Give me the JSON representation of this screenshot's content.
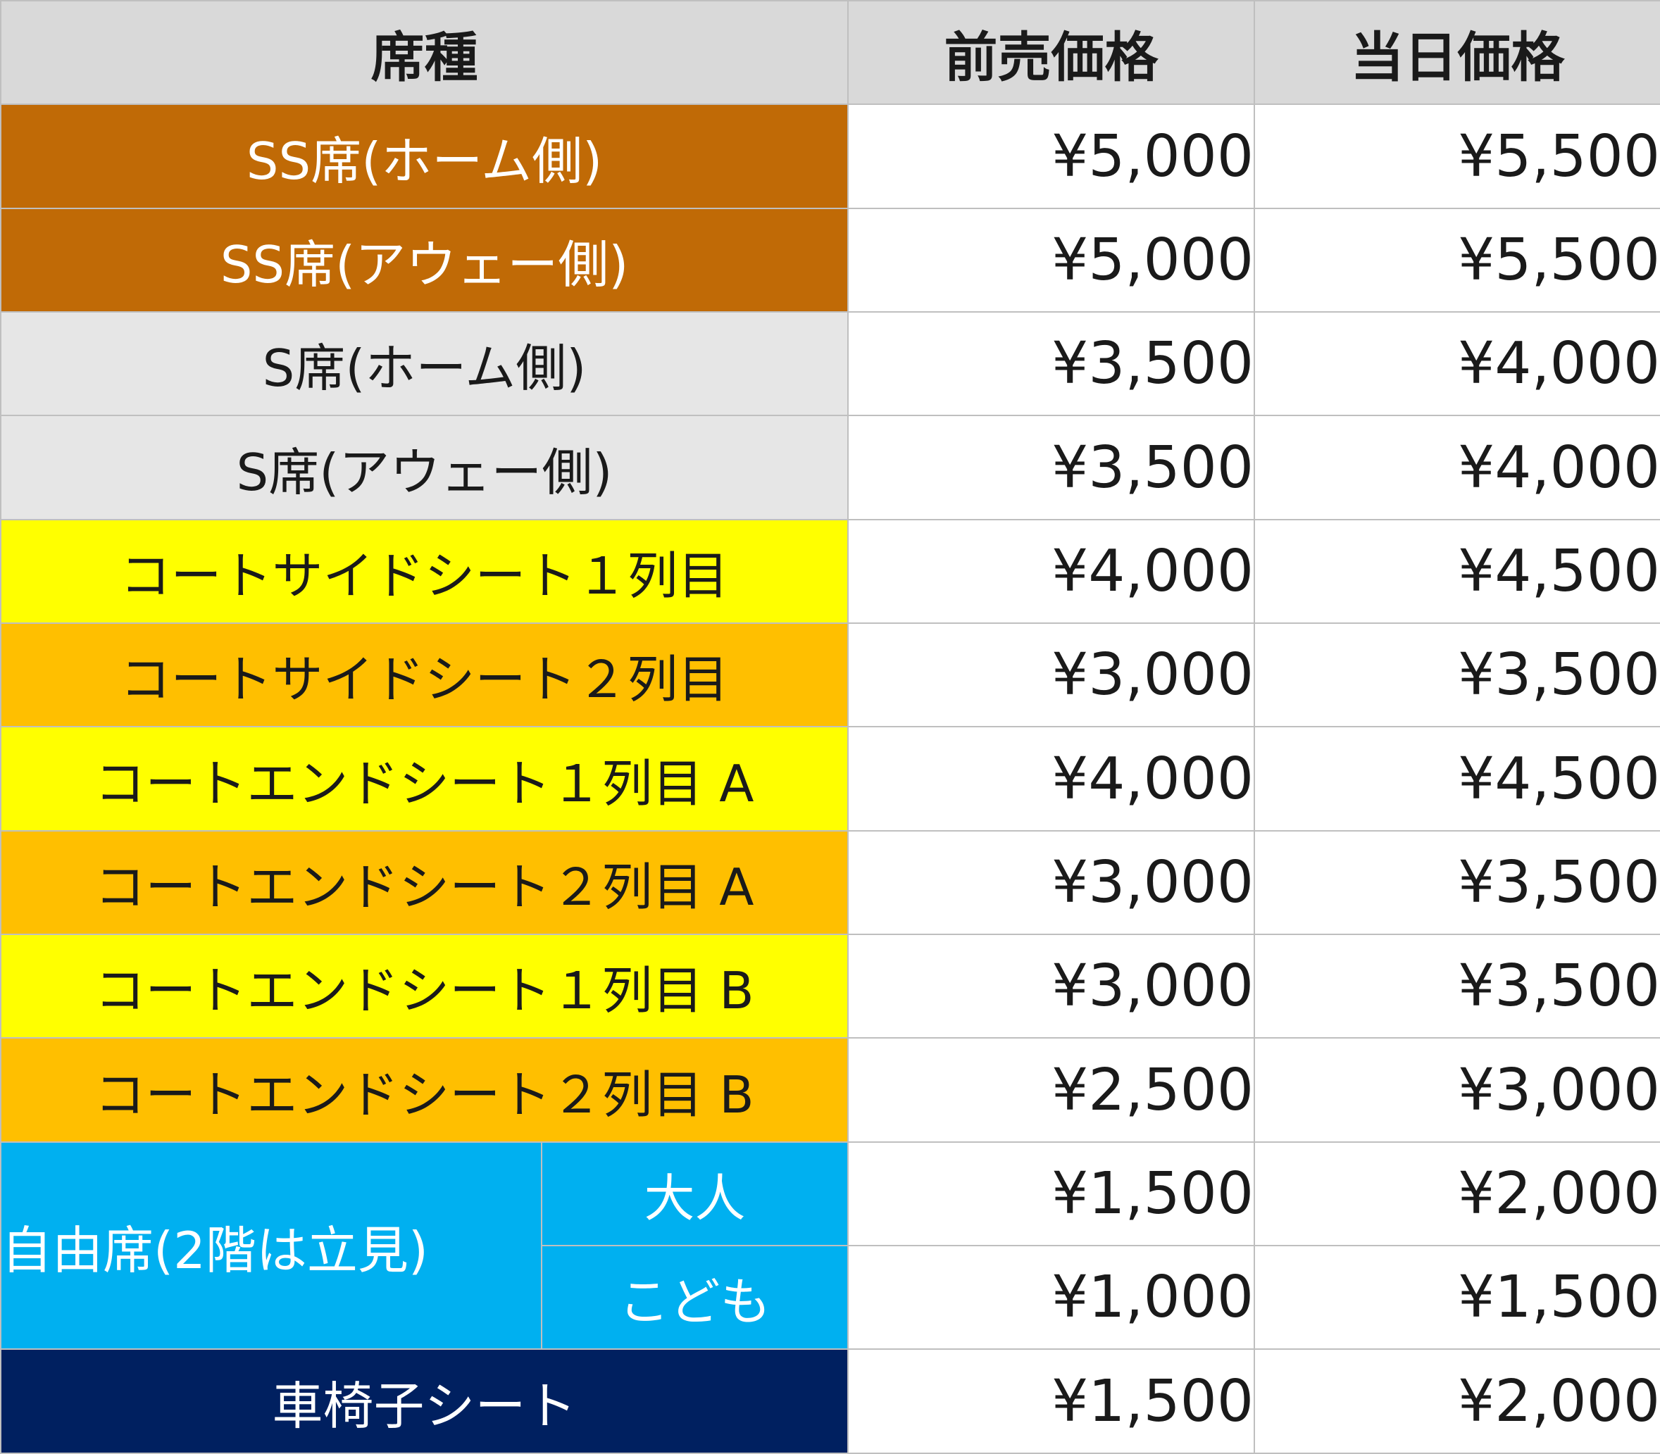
{
  "colors": {
    "header_bg": "#d9d9d9",
    "ss_brown": "#c06a06",
    "s_gray": "#e6e6e6",
    "yellow": "#ffff00",
    "orange": "#ffbf00",
    "sky_blue": "#00b0f0",
    "navy": "#002060",
    "grid": "#bfbfbf"
  },
  "header": {
    "seat_type": "席種",
    "advance_price": "前売価格",
    "same_day_price": "当日価格"
  },
  "rows": [
    {
      "seat": "SS席(ホーム側)",
      "advance": "¥5,000",
      "same_day": "¥5,500",
      "color": "#c06a06"
    },
    {
      "seat": "SS席(アウェー側)",
      "advance": "¥5,000",
      "same_day": "¥5,500",
      "color": "#c06a06"
    },
    {
      "seat": "S席(ホーム側)",
      "advance": "¥3,500",
      "same_day": "¥4,000",
      "color": "#e6e6e6"
    },
    {
      "seat": "S席(アウェー側)",
      "advance": "¥3,500",
      "same_day": "¥4,000",
      "color": "#e6e6e6"
    },
    {
      "seat": "コートサイドシート１列目",
      "advance": "¥4,000",
      "same_day": "¥4,500",
      "color": "#ffff00"
    },
    {
      "seat": "コートサイドシート２列目",
      "advance": "¥3,000",
      "same_day": "¥3,500",
      "color": "#ffbf00"
    },
    {
      "seat": "コートエンドシート１列目 A",
      "advance": "¥4,000",
      "same_day": "¥4,500",
      "color": "#ffff00"
    },
    {
      "seat": "コートエンドシート２列目 A",
      "advance": "¥3,000",
      "same_day": "¥3,500",
      "color": "#ffbf00"
    },
    {
      "seat": "コートエンドシート１列目 B",
      "advance": "¥3,000",
      "same_day": "¥3,500",
      "color": "#ffff00"
    },
    {
      "seat": "コートエンドシート２列目 B",
      "advance": "¥2,500",
      "same_day": "¥3,000",
      "color": "#ffbf00"
    }
  ],
  "free_seat": {
    "label": "自由席(2階は立見)",
    "color": "#00b0f0",
    "sub_rows": [
      {
        "label": "大人",
        "advance": "¥1,500",
        "same_day": "¥2,000"
      },
      {
        "label": "こども",
        "advance": "¥1,000",
        "same_day": "¥1,500"
      }
    ]
  },
  "wheelchair": {
    "seat": "車椅子シート",
    "advance": "¥1,500",
    "same_day": "¥2,000",
    "color": "#002060"
  }
}
